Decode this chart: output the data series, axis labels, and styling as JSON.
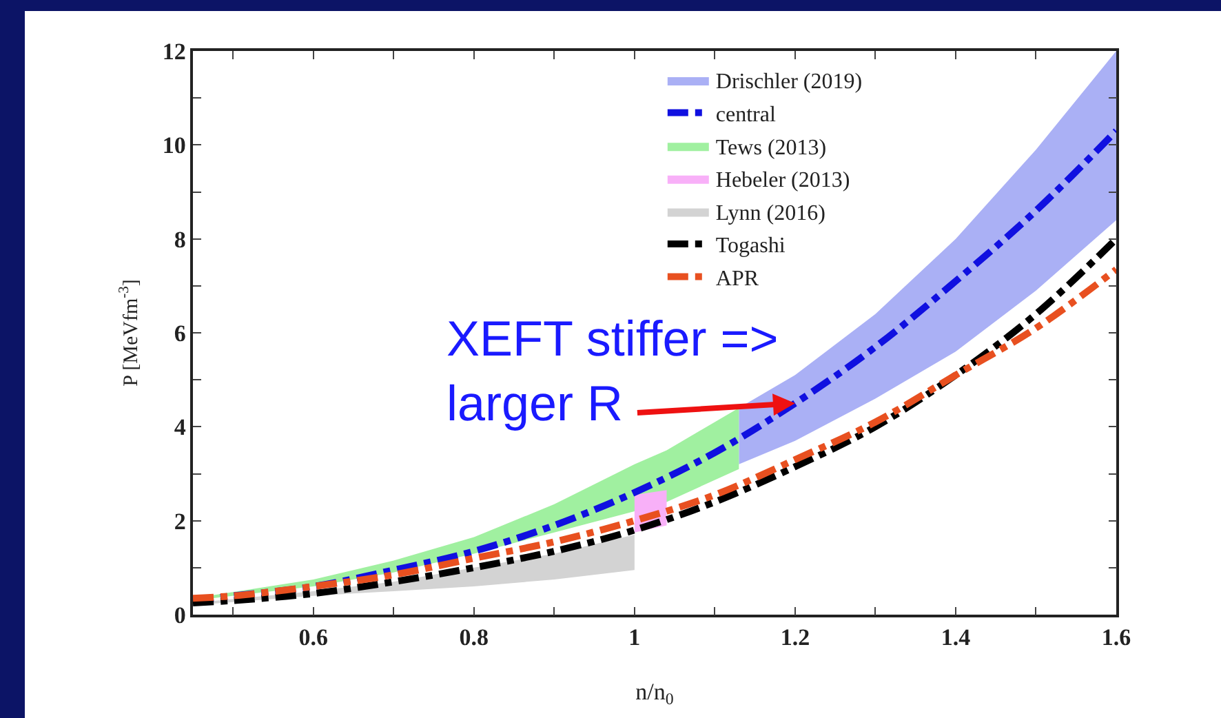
{
  "chart_data": {
    "type": "line",
    "xlabel": "n/n$_{0}$",
    "ylabel": "P [MeVfm$^{-3}$]",
    "xlim": [
      0.45,
      1.6
    ],
    "ylim": [
      0,
      12
    ],
    "xticks": [
      {
        "value": 0.5,
        "label": null
      },
      0.6,
      {
        "value": 0.7,
        "label": null
      },
      0.8,
      {
        "value": 0.9,
        "label": null
      },
      1,
      {
        "value": 1.1,
        "label": null
      },
      1.2,
      {
        "value": 1.3,
        "label": null
      },
      1.4,
      {
        "value": 1.5,
        "label": null
      },
      1.6
    ],
    "yticks": [
      0,
      {
        "value": 1,
        "label": null
      },
      2,
      {
        "value": 3,
        "label": null
      },
      4,
      {
        "value": 5,
        "label": null
      },
      6,
      {
        "value": 7,
        "label": null
      },
      8,
      {
        "value": 9,
        "label": null
      },
      10,
      {
        "value": 11,
        "label": null
      },
      12
    ],
    "grid": false,
    "legend": "top",
    "line_style": "dashed",
    "marker": "none",
    "series": [
      {
        "name": "Drischler (2019)",
        "color": "#aab0f5",
        "x": [
          1.13,
          1.2,
          1.3,
          1.4,
          1.5,
          1.6
        ],
        "values": [
          null,
          null,
          null,
          null,
          null,
          null
        ],
        "lower": [
          3.2,
          3.7,
          4.6,
          5.6,
          6.9,
          8.4
        ],
        "upper": [
          4.4,
          5.1,
          6.4,
          8.0,
          9.9,
          12.0
        ]
      },
      {
        "name": "central",
        "color": "#1010e0",
        "x": [
          0.45,
          0.5,
          0.6,
          0.7,
          0.8,
          0.9,
          1.0,
          1.1,
          1.2,
          1.3,
          1.4,
          1.5,
          1.6
        ],
        "values": [
          0.3,
          0.4,
          0.6,
          0.95,
          1.35,
          1.9,
          2.6,
          3.45,
          4.5,
          5.7,
          7.1,
          8.6,
          10.3
        ]
      },
      {
        "name": "Tews (2013)",
        "color": "#a0f0a0",
        "x": [
          0.45,
          0.6,
          0.7,
          0.8,
          0.9,
          1.0,
          1.04,
          1.13
        ],
        "values": [
          null,
          null,
          null,
          null,
          null,
          null,
          null,
          null
        ],
        "lower": [
          0.3,
          0.6,
          0.9,
          1.3,
          1.75,
          2.2,
          2.4,
          3.1
        ],
        "upper": [
          0.35,
          0.75,
          1.15,
          1.65,
          2.35,
          3.2,
          3.5,
          4.4
        ]
      },
      {
        "name": "Hebeler (2013)",
        "color": "#f8b0f8",
        "x": [
          1.0,
          1.04
        ],
        "values": [
          null,
          null
        ],
        "lower": [
          1.75,
          1.9
        ],
        "upper": [
          2.55,
          2.65
        ]
      },
      {
        "name": "Lynn (2016)",
        "color": "#d3d3d3",
        "x": [
          0.45,
          0.6,
          0.7,
          0.8,
          0.9,
          1.0
        ],
        "values": [
          null,
          null,
          null,
          null,
          null,
          null
        ],
        "lower": [
          0.2,
          0.4,
          0.5,
          0.6,
          0.75,
          0.95
        ],
        "upper": [
          0.25,
          0.5,
          0.7,
          1.0,
          1.3,
          1.7
        ]
      },
      {
        "name": "Togashi",
        "color": "#000000",
        "x": [
          0.45,
          0.5,
          0.6,
          0.7,
          0.8,
          0.9,
          1.0,
          1.1,
          1.2,
          1.3,
          1.4,
          1.5,
          1.6
        ],
        "values": [
          0.25,
          0.3,
          0.45,
          0.7,
          1.0,
          1.35,
          1.8,
          2.4,
          3.15,
          4.0,
          5.1,
          6.4,
          8.0
        ]
      },
      {
        "name": "APR",
        "color": "#e85020",
        "x": [
          0.45,
          0.5,
          0.6,
          0.7,
          0.8,
          0.9,
          1.0,
          1.1,
          1.2,
          1.3,
          1.4,
          1.5,
          1.6
        ],
        "values": [
          0.35,
          0.4,
          0.6,
          0.85,
          1.2,
          1.55,
          2.0,
          2.55,
          3.3,
          4.1,
          5.1,
          6.1,
          7.35
        ]
      }
    ],
    "annotations": [
      {
        "text": "XEFT stiffer =>\nlarger R",
        "x": 1.2,
        "y": 4.5
      }
    ]
  }
}
